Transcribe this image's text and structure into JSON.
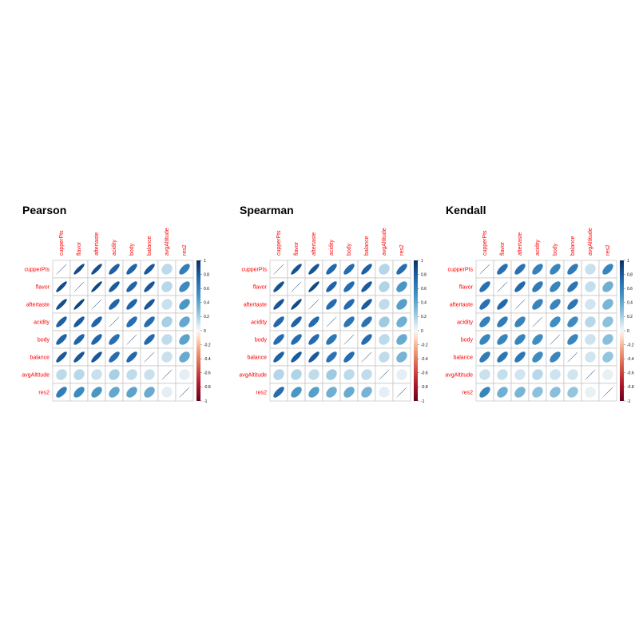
{
  "chart_data": [
    {
      "type": "heatmap",
      "title": "Pearson",
      "variables": [
        "cupperPts",
        "flavor",
        "aftertaste",
        "acidity",
        "body",
        "balance",
        "avgAltitude",
        "res2"
      ],
      "matrix": [
        [
          1.0,
          0.87,
          0.86,
          0.78,
          0.76,
          0.81,
          0.15,
          0.62
        ],
        [
          0.87,
          1.0,
          0.9,
          0.8,
          0.76,
          0.82,
          0.16,
          0.55
        ],
        [
          0.86,
          0.9,
          1.0,
          0.76,
          0.76,
          0.82,
          0.12,
          0.48
        ],
        [
          0.78,
          0.8,
          0.76,
          1.0,
          0.7,
          0.71,
          0.2,
          0.4
        ],
        [
          0.76,
          0.76,
          0.76,
          0.7,
          1.0,
          0.74,
          0.14,
          0.42
        ],
        [
          0.81,
          0.82,
          0.82,
          0.71,
          0.74,
          1.0,
          0.12,
          0.38
        ],
        [
          0.15,
          0.16,
          0.12,
          0.2,
          0.14,
          0.12,
          1.0,
          0.05
        ],
        [
          0.62,
          0.55,
          0.48,
          0.4,
          0.42,
          0.38,
          0.05,
          1.0
        ]
      ],
      "colorbar_ticks": [
        1,
        0.8,
        0.6,
        0.4,
        0.2,
        0,
        -0.2,
        -0.4,
        -0.6,
        -0.8,
        -1
      ],
      "range": [
        -1,
        1
      ]
    },
    {
      "type": "heatmap",
      "title": "Spearman",
      "variables": [
        "cupperPts",
        "flavor",
        "aftertaste",
        "acidity",
        "body",
        "balance",
        "avgAltitude",
        "res2"
      ],
      "matrix": [
        [
          1.0,
          0.84,
          0.83,
          0.74,
          0.72,
          0.78,
          0.17,
          0.71
        ],
        [
          0.84,
          1.0,
          0.88,
          0.77,
          0.72,
          0.8,
          0.18,
          0.48
        ],
        [
          0.83,
          0.88,
          1.0,
          0.72,
          0.72,
          0.8,
          0.14,
          0.44
        ],
        [
          0.74,
          0.77,
          0.72,
          1.0,
          0.66,
          0.68,
          0.22,
          0.36
        ],
        [
          0.72,
          0.72,
          0.72,
          0.66,
          1.0,
          0.71,
          0.15,
          0.38
        ],
        [
          0.78,
          0.8,
          0.8,
          0.68,
          0.71,
          1.0,
          0.14,
          0.34
        ],
        [
          0.17,
          0.18,
          0.14,
          0.22,
          0.15,
          0.14,
          1.0,
          0.05
        ],
        [
          0.71,
          0.48,
          0.44,
          0.36,
          0.38,
          0.34,
          0.05,
          1.0
        ]
      ],
      "colorbar_ticks": [
        1,
        0.8,
        0.6,
        0.4,
        0.2,
        0,
        -0.2,
        -0.4,
        -0.6,
        -0.8,
        -1
      ],
      "range": [
        -1,
        1
      ]
    },
    {
      "type": "heatmap",
      "title": "Kendall",
      "variables": [
        "cupperPts",
        "flavor",
        "aftertaste",
        "acidity",
        "body",
        "balance",
        "avgAltitude",
        "res2"
      ],
      "matrix": [
        [
          1.0,
          0.7,
          0.69,
          0.6,
          0.58,
          0.64,
          0.12,
          0.58
        ],
        [
          0.7,
          1.0,
          0.74,
          0.63,
          0.58,
          0.66,
          0.13,
          0.36
        ],
        [
          0.69,
          0.74,
          1.0,
          0.58,
          0.58,
          0.66,
          0.1,
          0.33
        ],
        [
          0.6,
          0.63,
          0.58,
          1.0,
          0.53,
          0.54,
          0.16,
          0.27
        ],
        [
          0.58,
          0.58,
          0.58,
          0.53,
          1.0,
          0.57,
          0.11,
          0.28
        ],
        [
          0.64,
          0.66,
          0.66,
          0.54,
          0.57,
          1.0,
          0.1,
          0.25
        ],
        [
          0.12,
          0.13,
          0.1,
          0.16,
          0.11,
          0.1,
          1.0,
          0.04
        ],
        [
          0.58,
          0.36,
          0.33,
          0.27,
          0.28,
          0.25,
          0.04,
          1.0
        ]
      ],
      "colorbar_ticks": [
        1,
        0.8,
        0.6,
        0.4,
        0.2,
        0,
        -0.2,
        -0.4,
        -0.6,
        -0.8,
        -1
      ],
      "range": [
        -1,
        1
      ]
    }
  ]
}
